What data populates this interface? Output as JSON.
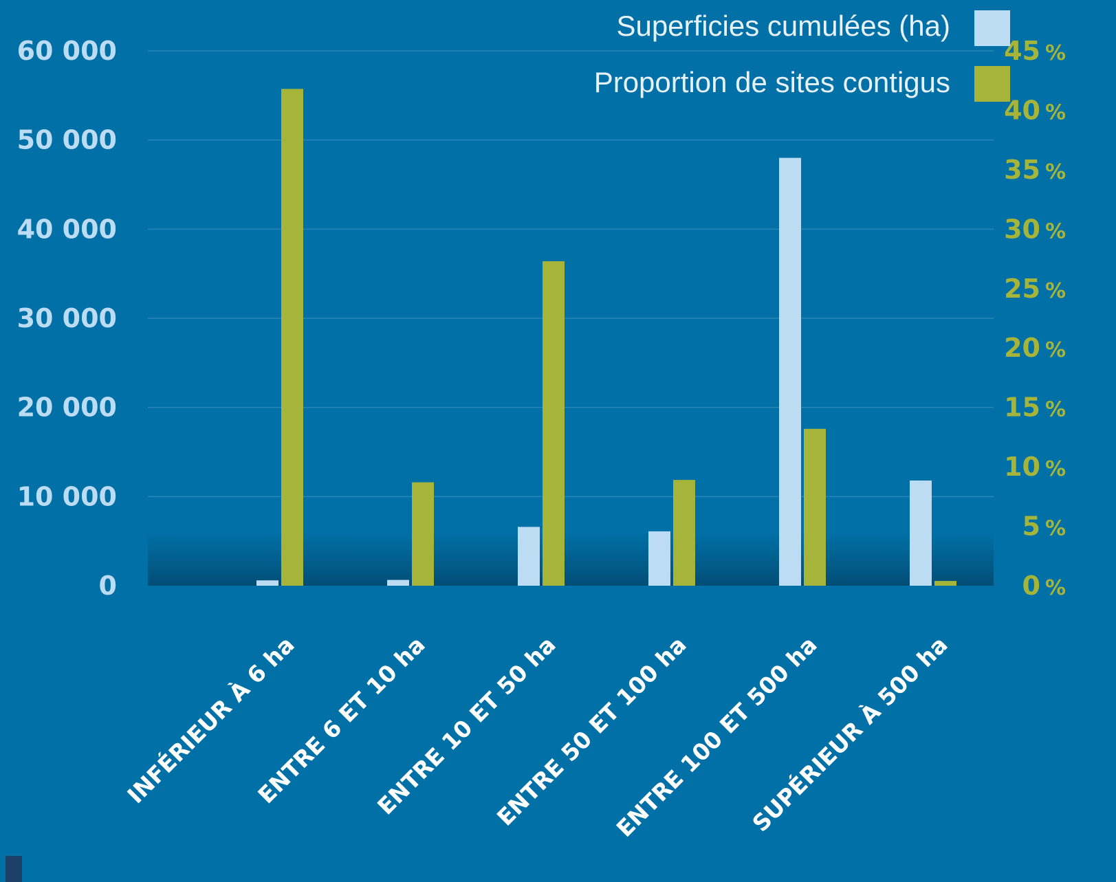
{
  "colors": {
    "background": "#0070a6",
    "surface_bar": "#bcdcf3",
    "proportion_bar": "#a6b53a",
    "left_axis_text": "#bcdcf3",
    "right_axis_text": "#a6b53a",
    "gridline": "#2a86b6",
    "label_text": "#ffffff",
    "legend_text": "#e6f1f8"
  },
  "chart_data": {
    "type": "bar",
    "categories": [
      "INFÉRIEUR À 6 ha",
      "ENTRE 6 ET 10 ha",
      "ENTRE 10 ET 50 ha",
      "ENTRE 50 ET 100 ha",
      "ENTRE 100 ET 500 ha",
      "SUPÉRIEUR À 500 ha"
    ],
    "series": [
      {
        "name": "Superficies cumulées (ha)",
        "axis": "left",
        "values": [
          600,
          650,
          6600,
          6100,
          48000,
          11800
        ]
      },
      {
        "name": "Proportion de sites contigus",
        "axis": "right",
        "values": [
          41.8,
          8.7,
          27.3,
          8.9,
          13.2,
          0.4
        ]
      }
    ],
    "left_axis": {
      "ylim": [
        0,
        60000
      ],
      "ticks": [
        0,
        10000,
        20000,
        30000,
        40000,
        50000,
        60000
      ],
      "tick_labels": [
        "0",
        "10 000",
        "20 000",
        "30 000",
        "40 000",
        "50 000",
        "60 000"
      ]
    },
    "right_axis": {
      "ylim": [
        0,
        45
      ],
      "ticks": [
        0,
        5,
        10,
        15,
        20,
        25,
        30,
        35,
        40,
        45
      ],
      "tick_numbers": [
        "0",
        "5",
        "10",
        "15",
        "20",
        "25",
        "30",
        "35",
        "40",
        "45"
      ],
      "tick_unit": "%"
    },
    "grid": true,
    "legend_position": "top-right"
  }
}
